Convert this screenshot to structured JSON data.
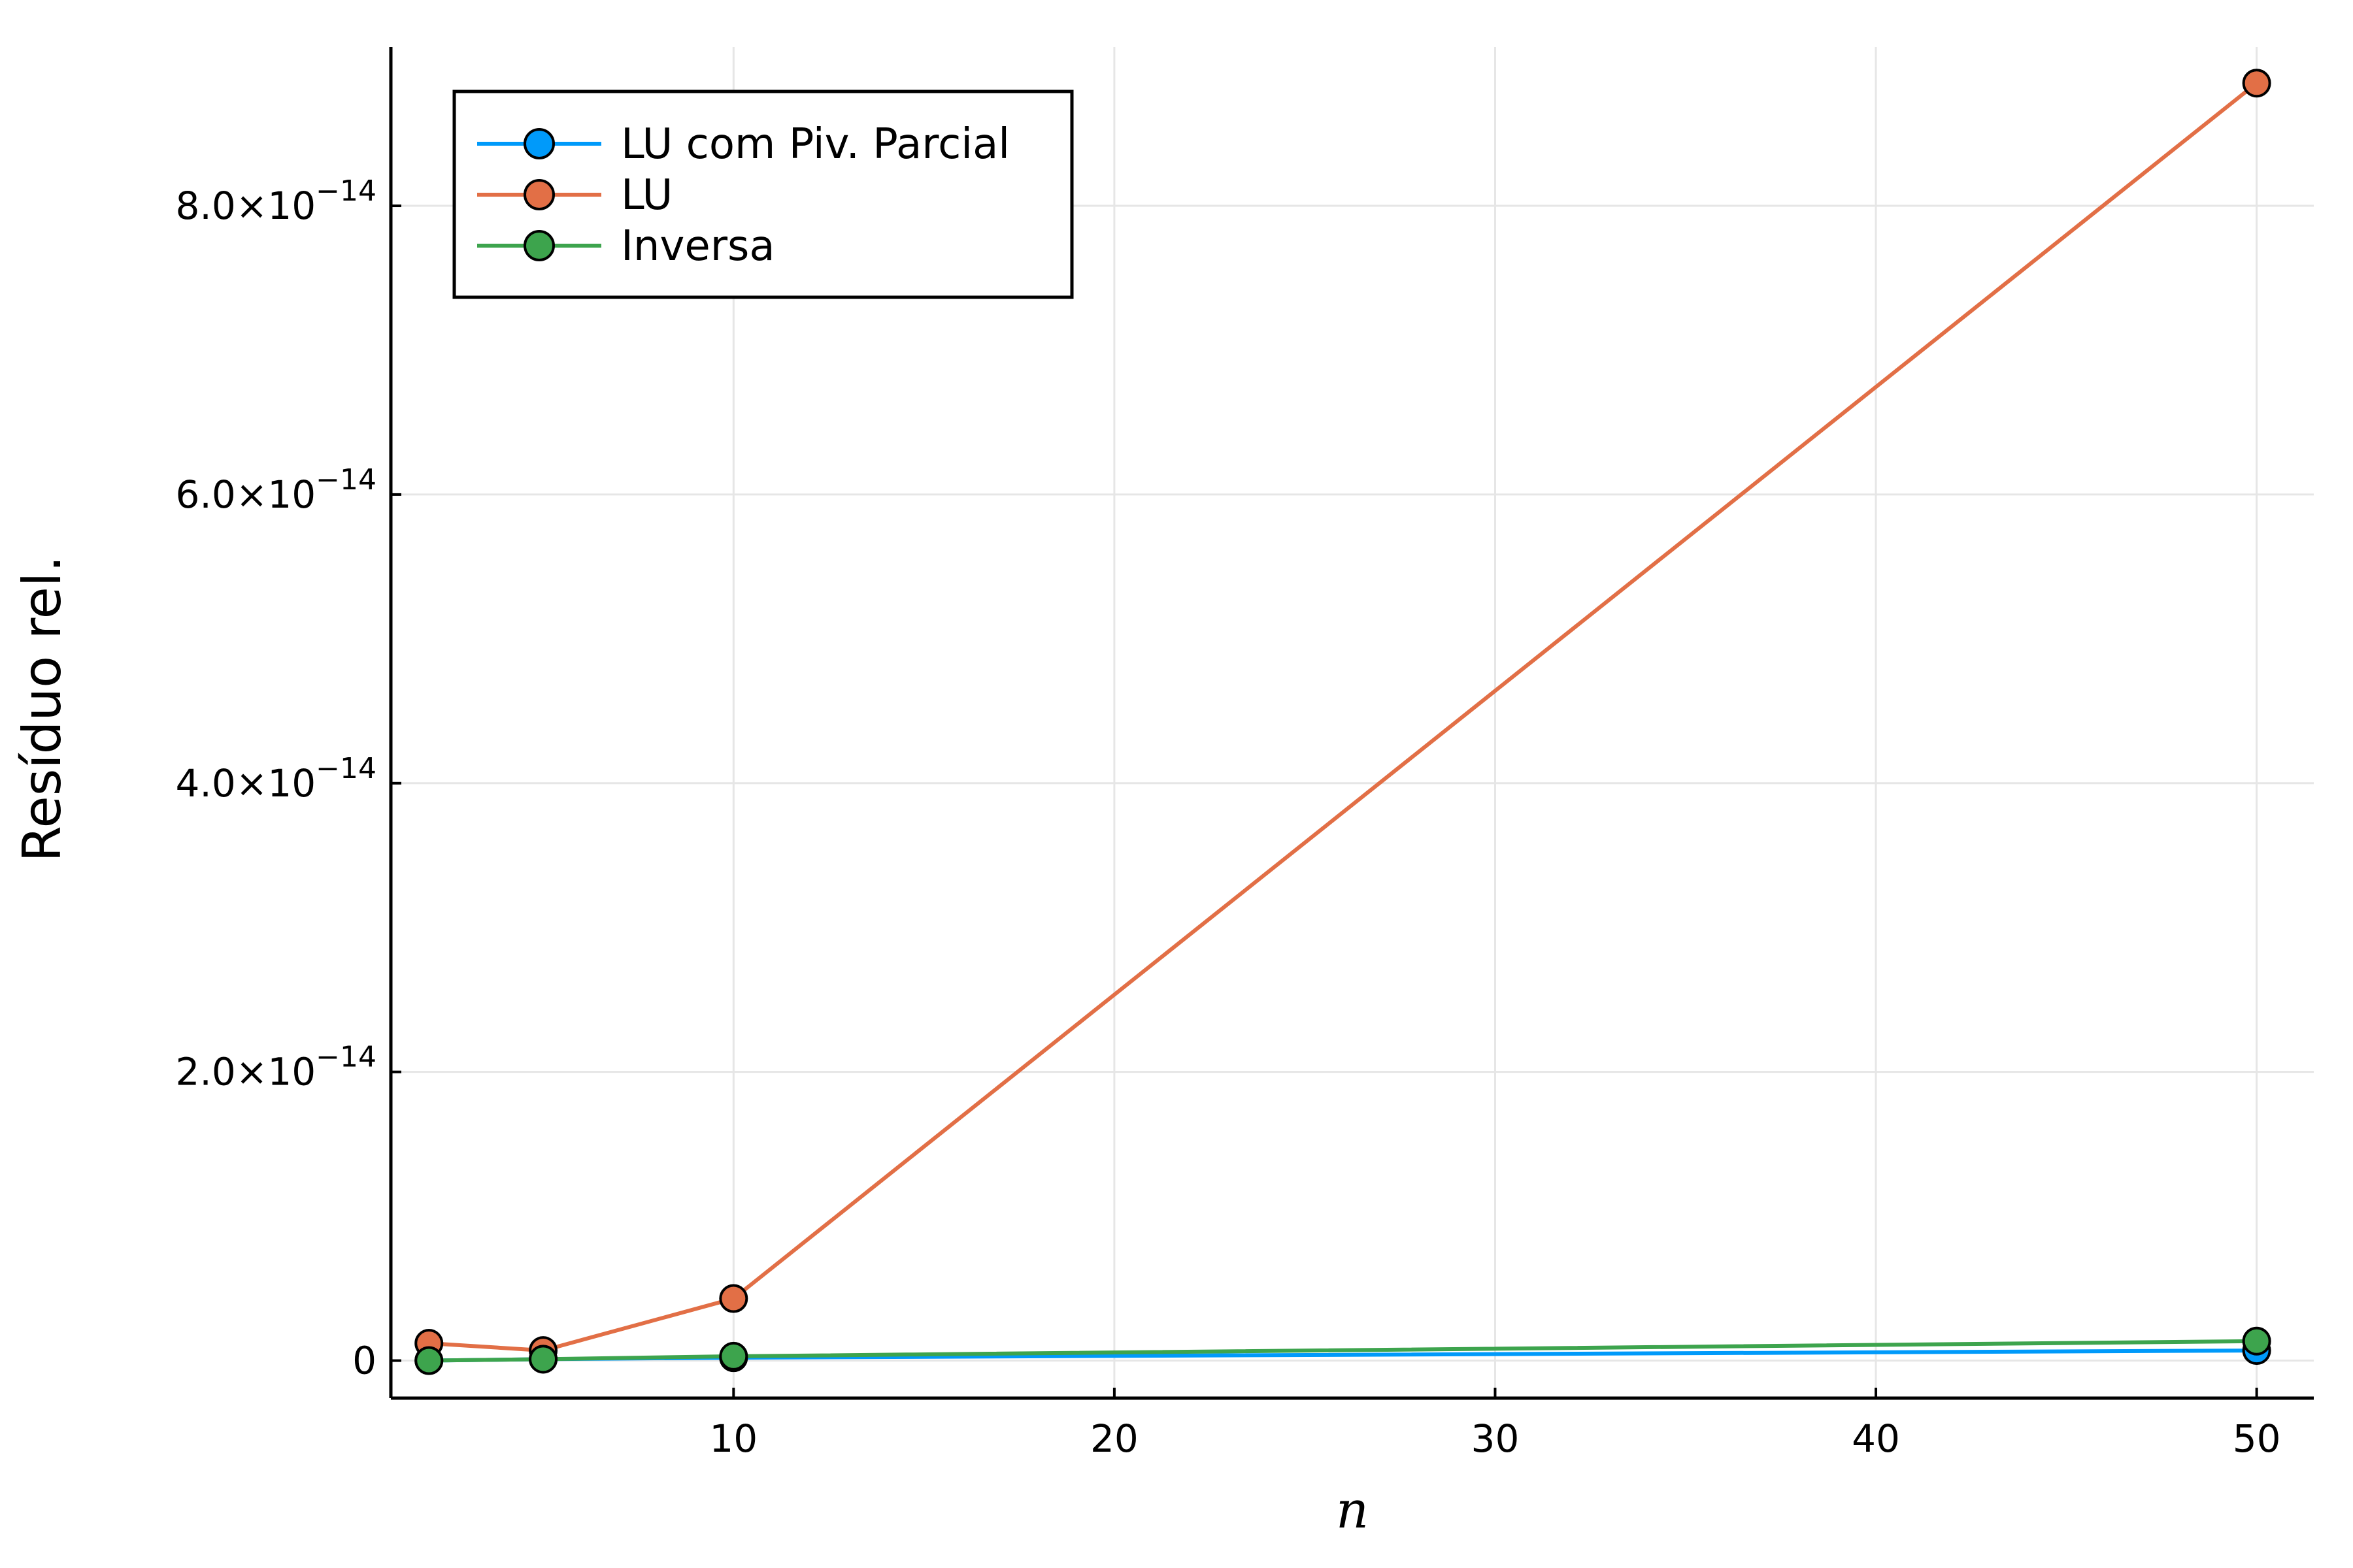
{
  "chart_data": {
    "type": "line",
    "xlabel": "n",
    "ylabel": "Resíduo rel.",
    "xlim": [
      1,
      51.5
    ],
    "ylim": [
      -2.6e-15,
      9.1e-14
    ],
    "grid": true,
    "legend_position": "top-left",
    "x_ticks": [
      {
        "value": 10,
        "label": "10"
      },
      {
        "value": 20,
        "label": "20"
      },
      {
        "value": 30,
        "label": "30"
      },
      {
        "value": 40,
        "label": "40"
      },
      {
        "value": 50,
        "label": "50"
      }
    ],
    "y_ticks": [
      {
        "value": 0,
        "label": "0",
        "exp": ""
      },
      {
        "value": 2e-14,
        "label": "2.0×10",
        "exp": "−14"
      },
      {
        "value": 4e-14,
        "label": "4.0×10",
        "exp": "−14"
      },
      {
        "value": 6e-14,
        "label": "6.0×10",
        "exp": "−14"
      },
      {
        "value": 8e-14,
        "label": "8.0×10",
        "exp": "−14"
      }
    ],
    "x": [
      2,
      5,
      10,
      50
    ],
    "series": [
      {
        "name": "LU com Piv. Parcial",
        "color": "#009AFA",
        "values": [
          0.0,
          1e-16,
          2e-16,
          7e-16
        ]
      },
      {
        "name": "LU",
        "color": "#E26F46",
        "values": [
          1.2e-15,
          7e-16,
          4.3e-15,
          8.85e-14
        ]
      },
      {
        "name": "Inversa",
        "color": "#3DA44D",
        "values": [
          0.0,
          1e-16,
          3e-16,
          1.35e-15
        ]
      }
    ]
  }
}
